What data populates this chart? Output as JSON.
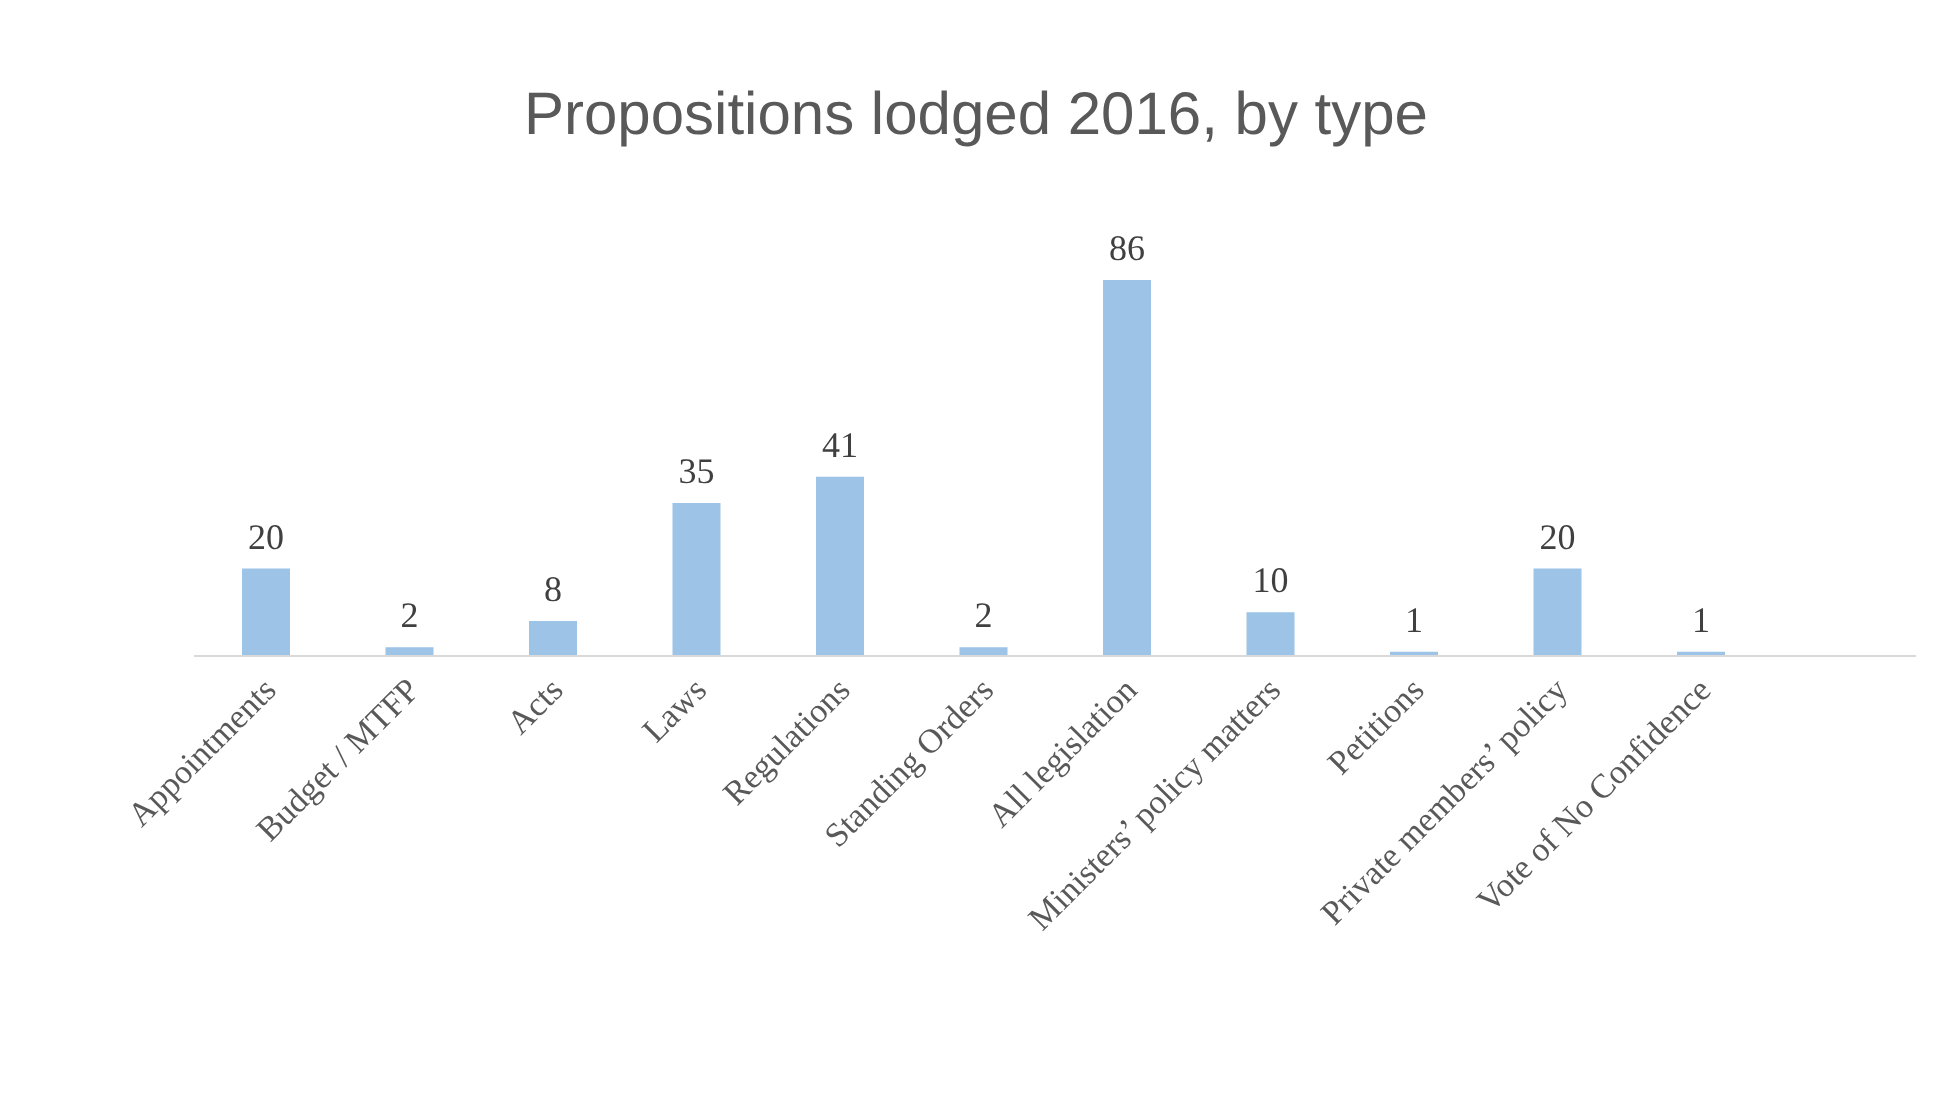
{
  "chart_data": {
    "type": "bar",
    "title": "Propositions lodged 2016, by type",
    "categories": [
      "Appointments",
      "Budget / MTFP",
      "Acts",
      "Laws",
      "Regulations",
      "Standing Orders",
      "All legislation",
      "Ministers’ policy matters",
      "Petitions",
      "Private members’ policy",
      "Vote of No Confidence",
      null
    ],
    "values": [
      20,
      2,
      8,
      35,
      41,
      2,
      86,
      10,
      1,
      20,
      1,
      null
    ],
    "color": "#9dc3e6",
    "data_labels": true
  }
}
